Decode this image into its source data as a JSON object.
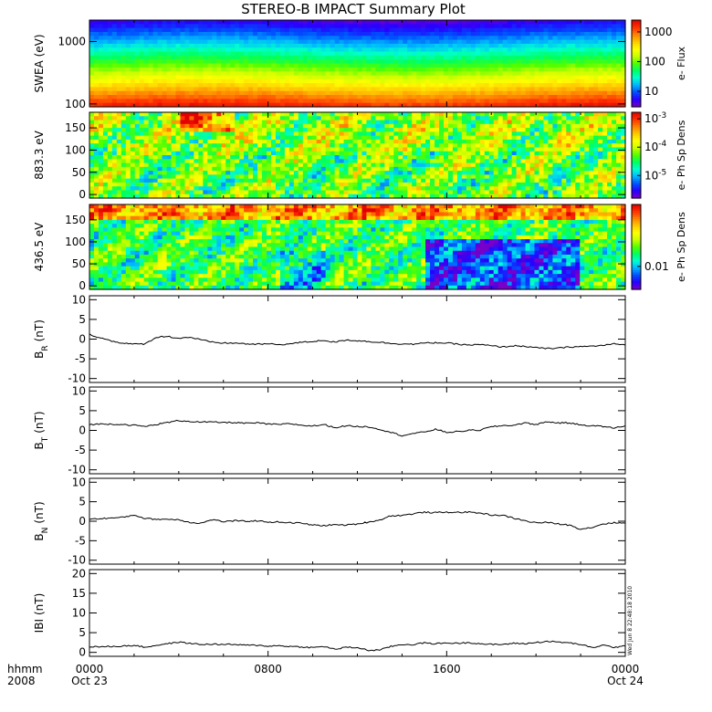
{
  "chart_data": {
    "type": "summary_plot",
    "title": "STEREO-B IMPACT Summary Plot",
    "x": {
      "ticks": [
        {
          "hhmm": "0000",
          "date": "Oct 23"
        },
        {
          "hhmm": "0800",
          "date": ""
        },
        {
          "hhmm": "1600",
          "date": ""
        },
        {
          "hhmm": "0000",
          "date": "Oct 24"
        }
      ],
      "tick_hours": [
        0,
        8,
        16,
        24
      ],
      "range_hours": [
        0,
        24
      ],
      "corner_label_top": "hhmm",
      "corner_label_bottom": "2008"
    },
    "stamp": "Wed Jun  8 22:48:18 2010",
    "spectrograms": [
      {
        "id": "swea",
        "ylabel": "SWEA (eV)",
        "yscale": "log",
        "ylim": [
          90,
          2200
        ],
        "yticks": [
          {
            "v": 1000,
            "label": "1000"
          },
          {
            "v": 100,
            "label": "100"
          }
        ],
        "colorbar": {
          "label": "e- Flux",
          "scale": "log",
          "range": [
            3,
            2500
          ],
          "ticks": [
            {
              "v": 1000,
              "label": "1000"
            },
            {
              "v": 100,
              "label": "100"
            },
            {
              "v": 10,
              "label": "10"
            }
          ]
        }
      },
      {
        "id": "pad883",
        "ylabel": "883.3 eV",
        "yscale": "linear",
        "ylim": [
          -8,
          185
        ],
        "yticks": [
          {
            "v": 150,
            "label": "150"
          },
          {
            "v": 100,
            "label": "100"
          },
          {
            "v": 50,
            "label": "50"
          },
          {
            "v": 0,
            "label": "0"
          }
        ],
        "colorbar": {
          "label": "e- Ph Sp Dens",
          "scale": "log",
          "range": [
            1.6e-06,
            0.0017
          ],
          "ticks": [
            {
              "v": 0.001,
              "base": "10",
              "exp": "-3"
            },
            {
              "v": 0.0001,
              "base": "10",
              "exp": "-4"
            },
            {
              "v": 1e-05,
              "base": "10",
              "exp": "-5"
            }
          ]
        }
      },
      {
        "id": "pad436",
        "ylabel": "436.5 eV",
        "yscale": "linear",
        "ylim": [
          -8,
          185
        ],
        "yticks": [
          {
            "v": 150,
            "label": "150"
          },
          {
            "v": 100,
            "label": "100"
          },
          {
            "v": 50,
            "label": "50"
          },
          {
            "v": 0,
            "label": "0"
          }
        ],
        "colorbar": {
          "label": "e- Ph Sp Dens",
          "scale": "log",
          "range": [
            0.0035,
            0.17
          ],
          "ticks": [
            {
              "v": 0.01,
              "label": "0.01"
            }
          ]
        }
      }
    ],
    "line_panels": [
      {
        "id": "br",
        "ylabel": "B",
        "ysub": "R",
        "yunit": "(nT)",
        "ylim": [
          -11,
          11
        ],
        "yticks": [
          {
            "v": 10,
            "label": "10"
          },
          {
            "v": 5,
            "label": "5"
          },
          {
            "v": 0,
            "label": "0"
          },
          {
            "v": -5,
            "label": "-5"
          },
          {
            "v": -10,
            "label": "-10"
          }
        ],
        "series_hours": [
          0,
          0.5,
          1,
          1.5,
          2,
          2.5,
          3,
          3.5,
          4,
          4.5,
          5,
          5.5,
          6,
          6.5,
          7,
          7.5,
          8,
          8.5,
          9,
          9.5,
          10,
          10.5,
          11,
          11.5,
          12,
          12.5,
          13,
          13.5,
          14,
          14.5,
          15,
          15.5,
          16,
          16.5,
          17,
          17.5,
          18,
          18.5,
          19,
          19.5,
          20,
          20.5,
          21,
          21.5,
          22,
          22.5,
          23,
          23.5,
          24
        ],
        "values": [
          1.2,
          0.3,
          -0.5,
          -1.0,
          -1.3,
          -1.2,
          0.5,
          0.7,
          0.2,
          0.5,
          -0.2,
          -0.8,
          -1.0,
          -1.0,
          -1.2,
          -1.3,
          -1.2,
          -1.4,
          -1.2,
          -0.8,
          -0.6,
          -0.3,
          -0.8,
          -0.2,
          -0.4,
          -0.6,
          -0.8,
          -1.1,
          -1.2,
          -1.3,
          -1.0,
          -0.9,
          -1.0,
          -1.3,
          -1.5,
          -1.4,
          -1.7,
          -2.0,
          -1.7,
          -1.8,
          -2.2,
          -2.4,
          -2.3,
          -2.0,
          -1.9,
          -1.8,
          -1.6,
          -1.2,
          -1.5
        ]
      },
      {
        "id": "bt",
        "ylabel": "B",
        "ysub": "T",
        "yunit": "(nT)",
        "ylim": [
          -11,
          11
        ],
        "yticks": [
          {
            "v": 10,
            "label": "10"
          },
          {
            "v": 5,
            "label": "5"
          },
          {
            "v": 0,
            "label": "0"
          },
          {
            "v": -5,
            "label": "-5"
          },
          {
            "v": -10,
            "label": "-10"
          }
        ],
        "series_hours": [
          0,
          0.5,
          1,
          1.5,
          2,
          2.5,
          3,
          3.5,
          4,
          4.5,
          5,
          5.5,
          6,
          6.5,
          7,
          7.5,
          8,
          8.5,
          9,
          9.5,
          10,
          10.5,
          11,
          11.5,
          12,
          12.5,
          13,
          13.5,
          14,
          14.5,
          15,
          15.5,
          16,
          16.5,
          17,
          17.5,
          18,
          18.5,
          19,
          19.5,
          20,
          20.5,
          21,
          21.5,
          22,
          22.5,
          23,
          23.5,
          24
        ],
        "values": [
          1.5,
          1.6,
          1.6,
          1.5,
          1.3,
          1.0,
          1.5,
          2.0,
          2.5,
          2.3,
          2.1,
          2.1,
          2.0,
          2.0,
          1.8,
          1.9,
          1.6,
          1.5,
          1.7,
          1.3,
          1.1,
          1.5,
          0.7,
          1.2,
          1.0,
          0.9,
          0.3,
          -0.5,
          -1.3,
          -0.8,
          -0.4,
          0.3,
          -0.5,
          -0.3,
          0.0,
          0.1,
          0.9,
          1.2,
          1.3,
          1.9,
          1.5,
          2.2,
          1.9,
          1.9,
          1.4,
          1.2,
          1.0,
          0.6,
          1.2
        ]
      },
      {
        "id": "bn",
        "ylabel": "B",
        "ysub": "N",
        "yunit": "(nT)",
        "ylim": [
          -11,
          11
        ],
        "yticks": [
          {
            "v": 10,
            "label": "10"
          },
          {
            "v": 5,
            "label": "5"
          },
          {
            "v": 0,
            "label": "0"
          },
          {
            "v": -5,
            "label": "-5"
          },
          {
            "v": -10,
            "label": "-10"
          }
        ],
        "series_hours": [
          0,
          0.5,
          1,
          1.5,
          2,
          2.5,
          3,
          3.5,
          4,
          4.5,
          5,
          5.5,
          6,
          6.5,
          7,
          7.5,
          8,
          8.5,
          9,
          9.5,
          10,
          10.5,
          11,
          11.5,
          12,
          12.5,
          13,
          13.5,
          14,
          14.5,
          15,
          15.5,
          16,
          16.5,
          17,
          17.5,
          18,
          18.5,
          19,
          19.5,
          20,
          20.5,
          21,
          21.5,
          22,
          22.5,
          23,
          23.5,
          24
        ],
        "values": [
          0.5,
          0.7,
          0.8,
          1.0,
          1.6,
          0.7,
          0.5,
          0.5,
          0.4,
          -0.3,
          -0.5,
          0.4,
          -0.1,
          0.1,
          0.0,
          0.1,
          -0.2,
          -0.2,
          -0.4,
          -0.5,
          -1.0,
          -1.1,
          -0.9,
          -1.0,
          -0.7,
          -0.2,
          0.3,
          1.4,
          1.5,
          1.9,
          2.3,
          2.2,
          2.3,
          2.3,
          2.3,
          2.1,
          1.6,
          1.5,
          0.8,
          0.1,
          -0.4,
          -0.3,
          -0.7,
          -1.0,
          -2.0,
          -1.6,
          -0.7,
          -0.4,
          -0.5
        ]
      },
      {
        "id": "bmag",
        "ylabel": "IBI",
        "ysub": "",
        "yunit": "(nT)",
        "ylim": [
          -1,
          21
        ],
        "yticks": [
          {
            "v": 20,
            "label": "20"
          },
          {
            "v": 15,
            "label": "15"
          },
          {
            "v": 10,
            "label": "10"
          },
          {
            "v": 5,
            "label": "5"
          },
          {
            "v": 0,
            "label": "0"
          }
        ],
        "series_hours": [
          0,
          0.5,
          1,
          1.5,
          2,
          2.5,
          3,
          3.5,
          4,
          4.5,
          5,
          5.5,
          6,
          6.5,
          7,
          7.5,
          8,
          8.5,
          9,
          9.5,
          10,
          10.5,
          11,
          11.5,
          12,
          12.5,
          13,
          13.5,
          14,
          14.5,
          15,
          15.5,
          16,
          16.5,
          17,
          17.5,
          18,
          18.5,
          19,
          19.5,
          20,
          20.5,
          21,
          21.5,
          22,
          22.5,
          23,
          23.5,
          24
        ],
        "values": [
          1.5,
          1.4,
          1.5,
          1.6,
          1.8,
          1.3,
          1.8,
          2.2,
          2.6,
          2.3,
          2.0,
          2.1,
          2.0,
          2.0,
          1.8,
          1.8,
          1.6,
          1.7,
          1.5,
          1.4,
          1.2,
          1.5,
          0.8,
          1.3,
          1.2,
          0.5,
          0.6,
          1.5,
          2.0,
          2.0,
          2.4,
          2.2,
          2.4,
          2.3,
          2.5,
          2.2,
          2.0,
          2.0,
          2.3,
          2.2,
          2.5,
          2.8,
          2.6,
          2.4,
          2.0,
          1.2,
          1.8,
          1.3,
          1.6
        ]
      }
    ]
  },
  "colors": {
    "background": "#ffffff",
    "axes": "#000000",
    "line": "#000000",
    "colormap": [
      "#7800c8",
      "#2800ff",
      "#0050ff",
      "#00b4ff",
      "#00ffd0",
      "#00ff60",
      "#50ff00",
      "#c8ff00",
      "#ffff00",
      "#ffc800",
      "#ff8000",
      "#ff3000",
      "#e00000"
    ]
  }
}
